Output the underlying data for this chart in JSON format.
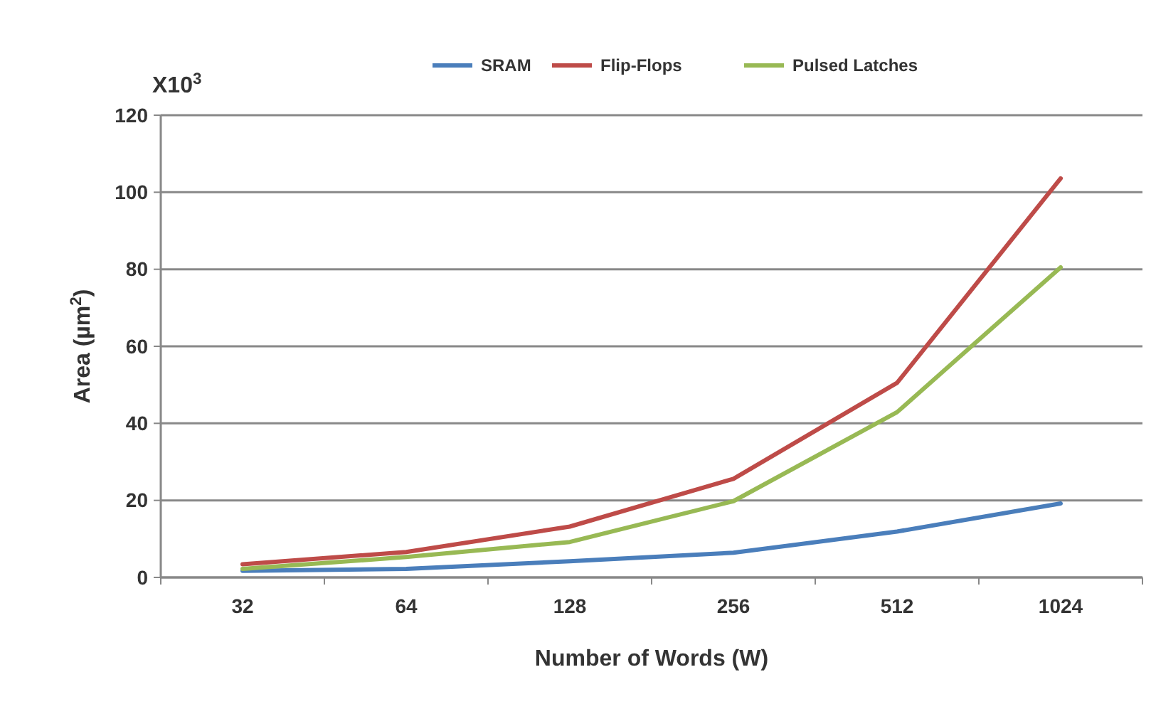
{
  "chart_data": {
    "type": "line",
    "xlabel": "Number of Words (W)",
    "ylabel": "Area (µm$^{2}$)",
    "annotations": [
      "X10$^{3}$"
    ],
    "categories": [
      "32",
      "64",
      "128",
      "256",
      "512",
      "1024"
    ],
    "series": [
      {
        "name": "SRAM",
        "color": "#4a7ebb",
        "values": [
          1.7,
          2.2,
          4.2,
          6.4,
          11.9,
          19.2
        ]
      },
      {
        "name": "Flip-Flops",
        "color": "#be4b48",
        "values": [
          3.4,
          6.6,
          13.2,
          25.6,
          50.5,
          103.6
        ]
      },
      {
        "name": "Pulsed Latches",
        "color": "#98b954",
        "values": [
          2.2,
          5.3,
          9.2,
          19.8,
          42.9,
          80.5
        ]
      }
    ],
    "ylim": [
      0,
      120
    ],
    "yticks": [
      0,
      20,
      40,
      60,
      80,
      100,
      120
    ],
    "grid": "y",
    "legend": "top",
    "marker": "none",
    "line_style": "solid"
  }
}
